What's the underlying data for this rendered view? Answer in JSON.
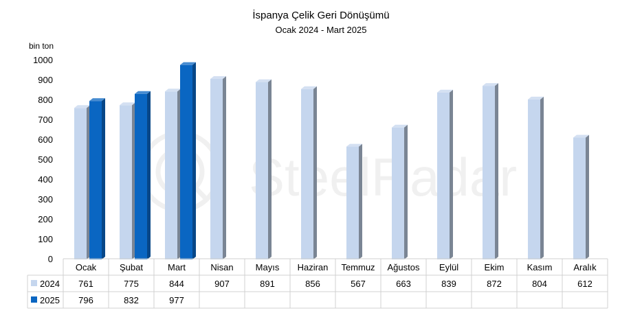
{
  "chart_data": {
    "type": "bar",
    "title": "İspanya Çelik Geri Dönüşümü",
    "subtitle": "Ocak 2024 - Mart 2025",
    "ylabel": "bin ton",
    "ylim": [
      0,
      1000
    ],
    "yticks": [
      0,
      100,
      200,
      300,
      400,
      500,
      600,
      700,
      800,
      900,
      1000
    ],
    "categories": [
      "Ocak",
      "Şubat",
      "Mart",
      "Nisan",
      "Mayıs",
      "Haziran",
      "Temmuz",
      "Ağustos",
      "Eylül",
      "Ekim",
      "Kasım",
      "Aralık"
    ],
    "series": [
      {
        "name": "2024",
        "values": [
          761,
          775,
          844,
          907,
          891,
          856,
          567,
          663,
          839,
          872,
          804,
          612
        ],
        "color": "#c5d6ee"
      },
      {
        "name": "2025",
        "values": [
          796,
          832,
          977,
          null,
          null,
          null,
          null,
          null,
          null,
          null,
          null,
          null
        ],
        "color": "#0a66c2"
      }
    ],
    "grid": false,
    "data_table": true,
    "style": "3d-columns"
  },
  "watermark": "SteelRadar"
}
